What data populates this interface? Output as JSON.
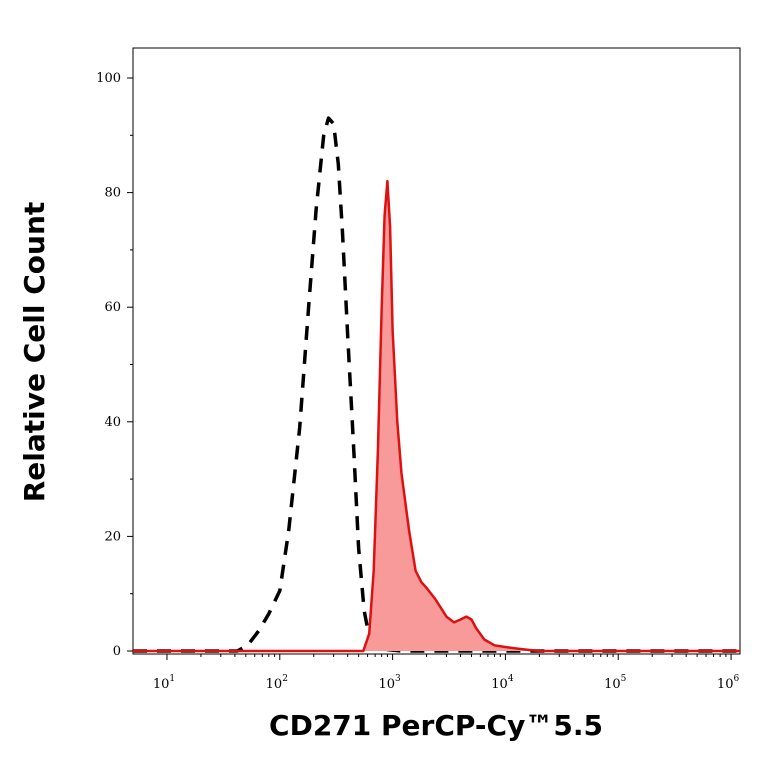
{
  "chart_data": {
    "type": "area",
    "title": "",
    "xlabel": "CD271 PerCP-Cy™5.5",
    "ylabel": "Relative Cell Count",
    "x_scale": "log",
    "xlim": [
      5,
      1200000
    ],
    "ylim": [
      0,
      100
    ],
    "x_ticks": [
      {
        "base": "10",
        "exp": "1",
        "value": 10
      },
      {
        "base": "10",
        "exp": "2",
        "value": 100
      },
      {
        "base": "10",
        "exp": "3",
        "value": 1000
      },
      {
        "base": "10",
        "exp": "4",
        "value": 10000
      },
      {
        "base": "10",
        "exp": "5",
        "value": 100000
      },
      {
        "base": "10",
        "exp": "6",
        "value": 1000000
      }
    ],
    "y_ticks": [
      "0",
      "20",
      "40",
      "60",
      "80",
      "100"
    ],
    "grid": false,
    "colors": {
      "stained_line": "#dd1111",
      "stained_fill": "#f99a9a",
      "control_line": "#000000"
    },
    "series": [
      {
        "style": "dashed-black",
        "x": [
          5,
          42,
          52,
          65,
          80,
          100,
          120,
          150,
          180,
          210,
          245,
          270,
          300,
          330,
          360,
          400,
          450,
          500,
          560,
          620,
          700,
          800,
          950,
          1200,
          2000,
          10000,
          100000,
          1200000
        ],
        "y": [
          0,
          0,
          1,
          3.5,
          6.5,
          10.5,
          21,
          39,
          60,
          77,
          90,
          93,
          92,
          85,
          73,
          55,
          36,
          18,
          7,
          2.5,
          1,
          0.4,
          0.2,
          0,
          0,
          0,
          0,
          0
        ]
      },
      {
        "style": "filled-red",
        "x": [
          5,
          550,
          620,
          680,
          740,
          800,
          850,
          900,
          950,
          1000,
          1100,
          1200,
          1400,
          1600,
          1800,
          2000,
          2400,
          3000,
          3500,
          4000,
          4500,
          5000,
          5500,
          6500,
          8000,
          10000,
          13000,
          16000,
          20000,
          100000,
          1200000
        ],
        "y": [
          0,
          0,
          3,
          14,
          35,
          60,
          76,
          82,
          74,
          56,
          40,
          31,
          21,
          14,
          12,
          11,
          9,
          6,
          5,
          5.5,
          6,
          5.5,
          4,
          2,
          1,
          0.7,
          0.4,
          0.2,
          0,
          0,
          0
        ]
      }
    ]
  }
}
